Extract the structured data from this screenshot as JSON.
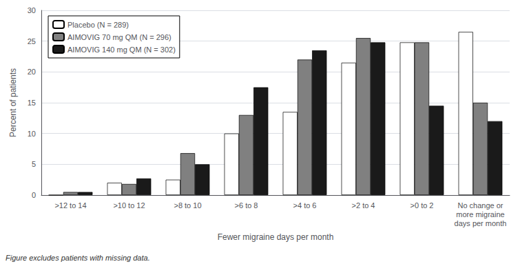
{
  "chart_data": {
    "type": "bar",
    "categories": [
      ">12 to 14",
      ">10 to 12",
      ">8 to 10",
      ">6 to 8",
      ">4 to 6",
      ">2 to 4",
      ">0 to 2",
      "No change or\nmore migraine\ndays per month"
    ],
    "series": [
      {
        "name": "Placebo (N = 289)",
        "color": "#ffffff",
        "values": [
          0,
          2.0,
          2.5,
          10.0,
          13.5,
          21.5,
          24.8,
          26.5
        ]
      },
      {
        "name": "AIMOVIG 70 mg QM (N = 296)",
        "color": "#808080",
        "values": [
          0.5,
          1.8,
          6.8,
          13.0,
          22.0,
          25.5,
          24.8,
          15.0
        ]
      },
      {
        "name": "AIMOVIG 140 mg QM (N = 302)",
        "color": "#1a1a1a",
        "values": [
          0.5,
          2.7,
          5.0,
          17.5,
          23.5,
          24.8,
          14.5,
          12.0
        ]
      }
    ],
    "xlabel": "Fewer migraine days per month",
    "ylabel": "Percent of patients",
    "ylim": [
      0,
      30
    ],
    "yticks": [
      0,
      5,
      10,
      15,
      20,
      25,
      30
    ],
    "grid": true,
    "legend": "upper left",
    "annotations": [
      "Figure excludes patients with missing data."
    ]
  }
}
